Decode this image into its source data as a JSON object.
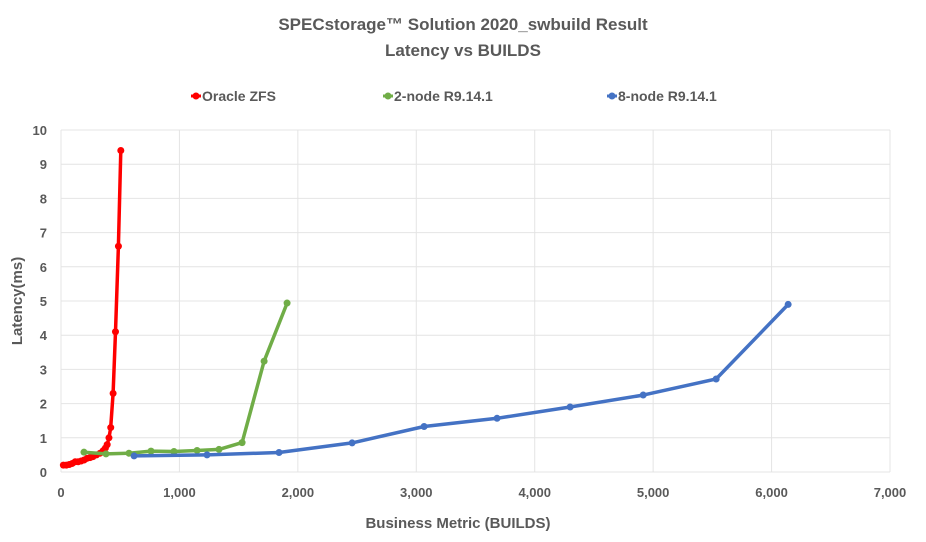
{
  "chart_data": {
    "type": "line",
    "title": "SPECstorage™ Solution 2020_swbuild Result",
    "subtitle": "Latency vs BUILDS",
    "xlabel": "Business Metric (BUILDS)",
    "ylabel": "Latency(ms)",
    "xlim": [
      0,
      7000
    ],
    "ylim": [
      0,
      10
    ],
    "xticks": [
      0,
      1000,
      2000,
      3000,
      4000,
      5000,
      6000,
      7000
    ],
    "xtick_labels": [
      "0",
      "1,000",
      "2,000",
      "3,000",
      "4,000",
      "5,000",
      "6,000",
      "7,000"
    ],
    "yticks": [
      0,
      1,
      2,
      3,
      4,
      5,
      6,
      7,
      8,
      9,
      10
    ],
    "ytick_labels": [
      "0",
      "1",
      "2",
      "3",
      "4",
      "5",
      "6",
      "7",
      "8",
      "9",
      "10"
    ],
    "grid": true,
    "legend_position": "top",
    "series": [
      {
        "name": "Oracle ZFS",
        "color": "#ff0000",
        "points": [
          [
            20,
            0.2
          ],
          [
            45,
            0.2
          ],
          [
            70,
            0.22
          ],
          [
            95,
            0.25
          ],
          [
            120,
            0.3
          ],
          [
            145,
            0.3
          ],
          [
            170,
            0.32
          ],
          [
            195,
            0.35
          ],
          [
            220,
            0.4
          ],
          [
            245,
            0.42
          ],
          [
            270,
            0.45
          ],
          [
            300,
            0.5
          ],
          [
            330,
            0.55
          ],
          [
            355,
            0.62
          ],
          [
            375,
            0.7
          ],
          [
            390,
            0.8
          ],
          [
            405,
            1.0
          ],
          [
            420,
            1.3
          ],
          [
            440,
            2.3
          ],
          [
            460,
            4.1
          ],
          [
            485,
            6.6
          ],
          [
            505,
            9.4
          ]
        ]
      },
      {
        "name": "2-node R9.14.1",
        "color": "#70ad47",
        "points": [
          [
            194,
            0.58
          ],
          [
            380,
            0.53
          ],
          [
            574,
            0.55
          ],
          [
            760,
            0.61
          ],
          [
            954,
            0.6
          ],
          [
            1149,
            0.63
          ],
          [
            1334,
            0.66
          ],
          [
            1529,
            0.86
          ],
          [
            1715,
            3.24
          ],
          [
            1909,
            4.94
          ]
        ]
      },
      {
        "name": "8-node R9.14.1",
        "color": "#4472c4",
        "points": [
          [
            617,
            0.47
          ],
          [
            1233,
            0.5
          ],
          [
            1841,
            0.57
          ],
          [
            2458,
            0.85
          ],
          [
            3066,
            1.33
          ],
          [
            3682,
            1.57
          ],
          [
            4299,
            1.9
          ],
          [
            4916,
            2.25
          ],
          [
            5532,
            2.72
          ],
          [
            6140,
            4.9
          ]
        ]
      }
    ]
  }
}
